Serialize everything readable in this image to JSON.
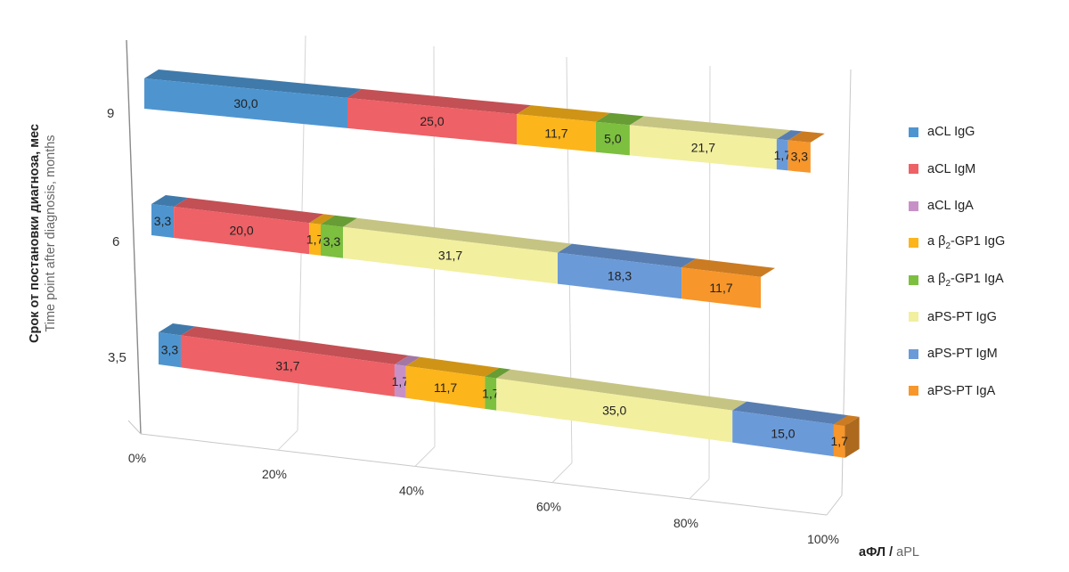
{
  "chart_data": {
    "type": "bar",
    "orientation": "horizontal",
    "stacked": "100%",
    "style": "3d",
    "categories": [
      "9",
      "6",
      "3,5"
    ],
    "series": [
      {
        "name": "aCL IgG",
        "color": "#4E95D0",
        "values": [
          30.0,
          3.3,
          3.3
        ],
        "labels": [
          "30,0",
          "3,3",
          "3,3"
        ]
      },
      {
        "name": "aCL IgM",
        "color": "#EE6166",
        "values": [
          25.0,
          20.0,
          31.7
        ],
        "labels": [
          "25,0",
          "20,0",
          "31,7"
        ]
      },
      {
        "name": "aCL IgA",
        "color": "#C791C8",
        "values": [
          0,
          0,
          1.7
        ],
        "labels": [
          "",
          "",
          "1,7"
        ]
      },
      {
        "name": "aβ2-GP1 IgG",
        "name_parts": [
          "a",
          "β",
          "2",
          "-GP1 IgG"
        ],
        "color": "#FCB51B",
        "values": [
          11.7,
          1.7,
          11.7
        ],
        "labels": [
          "11,7",
          "1,7",
          "11,7"
        ]
      },
      {
        "name": "aβ2-GP1 IgA",
        "name_parts": [
          "a",
          "β",
          "2",
          "-GP1 IgA"
        ],
        "color": "#7DBF3F",
        "values": [
          5.0,
          3.3,
          1.7
        ],
        "labels": [
          "5,0",
          "3,3",
          "1,7"
        ]
      },
      {
        "name": "aPS-PT IgG",
        "color": "#F2EF9F",
        "values": [
          21.7,
          31.7,
          35.0
        ],
        "labels": [
          "21,7",
          "31,7",
          "35,0"
        ]
      },
      {
        "name": "aPS-PT IgM",
        "color": "#6B9AD8",
        "values": [
          1.7,
          18.3,
          15.0
        ],
        "labels": [
          "1,7",
          "18,3",
          "15,0"
        ]
      },
      {
        "name": "aPS-PT IgA",
        "color": "#F7962A",
        "values": [
          3.3,
          11.7,
          1.7
        ],
        "labels": [
          "3,3",
          "11,7",
          "1,7"
        ]
      }
    ],
    "x_ticks": [
      "0%",
      "20%",
      "40%",
      "60%",
      "80%",
      "100%"
    ],
    "xlim": [
      0,
      100
    ],
    "xlabel": {
      "ru": "аФЛ",
      "sep": " / ",
      "en": "aPL"
    },
    "ylabel": {
      "ru": "Срок от постановки диагноза, мес",
      "en": "Time point after diagnosis, months"
    },
    "grid": true,
    "legend": "right"
  }
}
